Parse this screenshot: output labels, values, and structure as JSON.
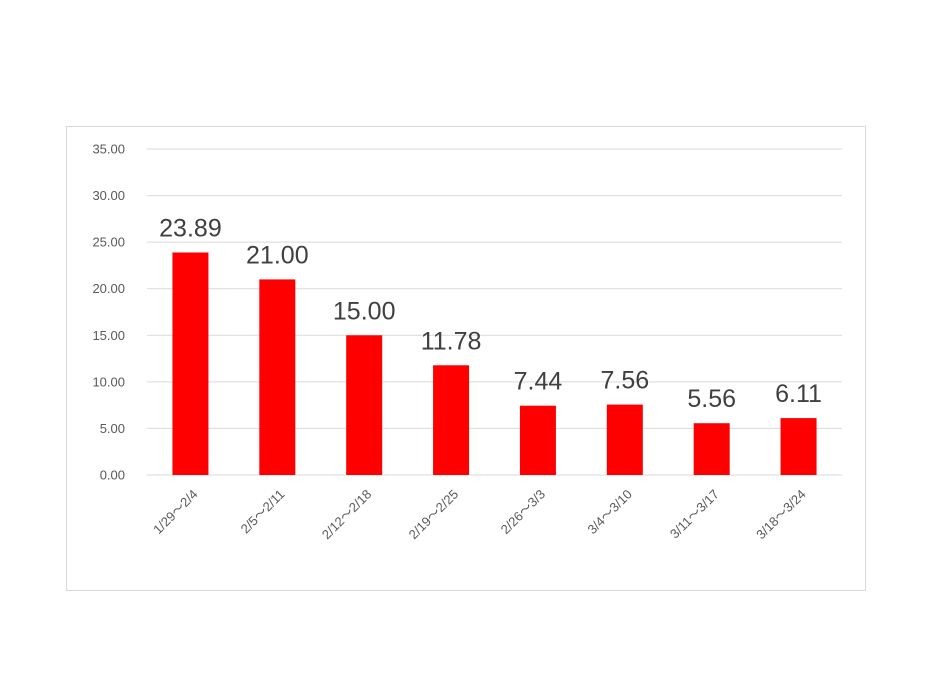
{
  "chart_data": {
    "type": "bar",
    "categories": [
      "1/29～2/4",
      "2/5～2/11",
      "2/12～2/18",
      "2/19～2/25",
      "2/26～3/3",
      "3/4～3/10",
      "3/11～3/17",
      "3/18～3/24"
    ],
    "values": [
      23.89,
      21.0,
      15.0,
      11.78,
      7.44,
      7.56,
      5.56,
      6.11
    ],
    "data_labels": [
      "23.89",
      "21.00",
      "15.00",
      "11.78",
      "7.44",
      "7.56",
      "5.56",
      "6.11"
    ],
    "title": "",
    "xlabel": "",
    "ylabel": "",
    "ylim": [
      0,
      35
    ],
    "yticks": [
      "0.00",
      "5.00",
      "10.00",
      "15.00",
      "20.00",
      "25.00",
      "30.00",
      "35.00"
    ],
    "grid": true,
    "legend": "none",
    "bar_color": "#ff0000"
  }
}
